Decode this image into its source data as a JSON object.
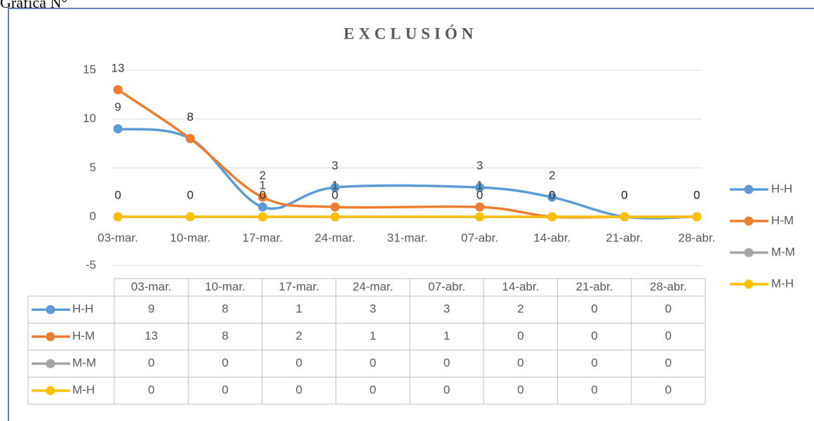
{
  "caption": "Gráfica N°",
  "chart_data": {
    "type": "line",
    "title": "EXCLUSIÓN",
    "smooth": true,
    "grid": true,
    "legend": "right",
    "data_table": true,
    "xticks": [
      "03-mar.",
      "10-mar.",
      "17-mar.",
      "24-mar.",
      "31-mar.",
      "07-abr.",
      "14-abr.",
      "21-abr.",
      "28-abr."
    ],
    "categories": [
      "03-mar.",
      "10-mar.",
      "17-mar.",
      "24-mar.",
      "07-abr.",
      "14-abr.",
      "21-abr.",
      "28-abr."
    ],
    "ylim": [
      -5,
      15
    ],
    "yticks": [
      -5,
      0,
      5,
      10,
      15
    ],
    "series": [
      {
        "name": "H-H",
        "color": "#5b9bd5",
        "values": [
          9,
          8,
          1,
          3,
          3,
          2,
          0,
          0
        ]
      },
      {
        "name": "H-M",
        "color": "#ed7d31",
        "values": [
          13,
          8,
          2,
          1,
          1,
          0,
          0,
          0
        ]
      },
      {
        "name": "M-M",
        "color": "#a5a5a5",
        "values": [
          0,
          0,
          0,
          0,
          0,
          0,
          0,
          0
        ]
      },
      {
        "name": "M-H",
        "color": "#ffc000",
        "values": [
          0,
          0,
          0,
          0,
          0,
          0,
          0,
          0
        ]
      }
    ]
  }
}
